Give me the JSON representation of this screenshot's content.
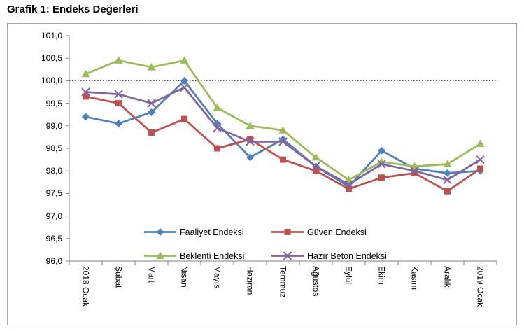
{
  "chart_data": {
    "type": "line",
    "title": "Grafik 1: Endeks Değerleri",
    "categories": [
      "2018 Ocak",
      "Şubat",
      "Mart",
      "Nisan",
      "Mayıs",
      "Haziran",
      "Temmuz",
      "Ağustos",
      "Eylül",
      "Ekim",
      "Kasım",
      "Aralık",
      "2019 Ocak"
    ],
    "series": [
      {
        "name": "Faaliyet Endeksi",
        "marker": "diamond",
        "color": "#4F81BD",
        "values": [
          99.2,
          99.05,
          99.3,
          100.0,
          99.05,
          98.3,
          98.7,
          98.1,
          97.65,
          98.45,
          98.05,
          97.95,
          98.0
        ]
      },
      {
        "name": "Güven Endeksi",
        "marker": "square",
        "color": "#C0504D",
        "values": [
          99.65,
          99.5,
          98.85,
          99.15,
          98.5,
          98.7,
          98.25,
          98.0,
          97.6,
          97.85,
          97.95,
          97.55,
          98.05
        ]
      },
      {
        "name": "Beklenti Endeksi",
        "marker": "triangle",
        "color": "#9BBB59",
        "values": [
          100.15,
          100.45,
          100.3,
          100.45,
          99.4,
          99.0,
          98.9,
          98.3,
          97.8,
          98.2,
          98.1,
          98.15,
          98.6
        ]
      },
      {
        "name": "Hazır Beton Endeksi",
        "marker": "x",
        "color": "#8064A2",
        "values": [
          99.75,
          99.7,
          99.5,
          99.85,
          98.95,
          98.65,
          98.65,
          98.1,
          97.7,
          98.15,
          98.0,
          97.8,
          98.25
        ]
      }
    ],
    "ylim": [
      96.0,
      101.0
    ],
    "ytick_labels": [
      "101,0",
      "100,5",
      "100,0",
      "99,5",
      "99,0",
      "98,5",
      "98,0",
      "97,5",
      "97,0",
      "96,5",
      "96,0"
    ],
    "reference_line_value": 100.0,
    "grid": "off",
    "legend_position": "inside-bottom",
    "axis_color": "#808080",
    "reference_line_color": "#333333"
  }
}
